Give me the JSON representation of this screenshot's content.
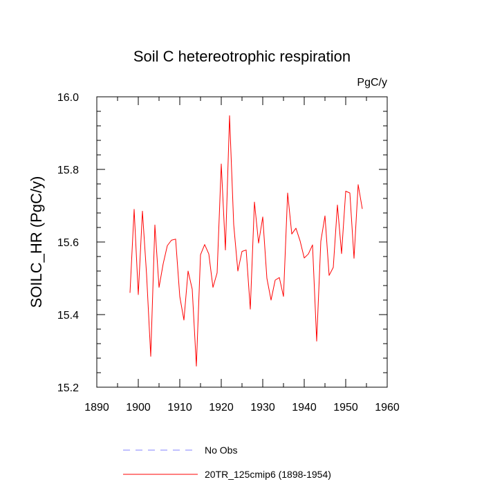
{
  "chart_data": {
    "type": "line",
    "title": "Soil C hetereotrophic respiration",
    "units": "PgC/y",
    "xlabel": "",
    "ylabel": "SOILC_HR  (PgC/y)",
    "xlim": [
      1890,
      1960
    ],
    "ylim": [
      15.2,
      16.0
    ],
    "x_major_ticks": [
      1890,
      1900,
      1910,
      1920,
      1930,
      1940,
      1950,
      1960
    ],
    "x_tick_labels": [
      "1890",
      "1900",
      "1910",
      "1920",
      "1930",
      "1940",
      "1950",
      "1960"
    ],
    "x_minor_step": 5,
    "y_major_ticks": [
      15.2,
      15.4,
      15.6,
      15.8,
      16.0
    ],
    "y_tick_labels": [
      "15.2",
      "15.4",
      "15.6",
      "15.8",
      "16.0"
    ],
    "y_minor_step": 0.04,
    "grid": false,
    "series": [
      {
        "name": "No Obs",
        "color": "#8080ff",
        "style": "dashed",
        "x": [],
        "values": []
      },
      {
        "name": "20TR_125cmip6 (1898-1954)",
        "color": "#ff0000",
        "style": "solid",
        "x": [
          1898,
          1899,
          1900,
          1901,
          1902,
          1903,
          1904,
          1905,
          1906,
          1907,
          1908,
          1909,
          1910,
          1911,
          1912,
          1913,
          1914,
          1915,
          1916,
          1917,
          1918,
          1919,
          1920,
          1921,
          1922,
          1923,
          1924,
          1925,
          1926,
          1927,
          1928,
          1929,
          1930,
          1931,
          1932,
          1933,
          1934,
          1935,
          1936,
          1937,
          1938,
          1939,
          1940,
          1941,
          1942,
          1943,
          1944,
          1945,
          1946,
          1947,
          1948,
          1949,
          1950,
          1951,
          1952,
          1953,
          1954
        ],
        "values": [
          15.46,
          15.69,
          15.455,
          15.685,
          15.51,
          15.285,
          15.647,
          15.475,
          15.54,
          15.59,
          15.605,
          15.608,
          15.45,
          15.385,
          15.52,
          15.47,
          15.258,
          15.565,
          15.593,
          15.567,
          15.475,
          15.515,
          15.815,
          15.578,
          15.948,
          15.648,
          15.52,
          15.574,
          15.578,
          15.415,
          15.71,
          15.597,
          15.669,
          15.5,
          15.44,
          15.495,
          15.502,
          15.45,
          15.735,
          15.622,
          15.638,
          15.603,
          15.556,
          15.567,
          15.592,
          15.327,
          15.602,
          15.672,
          15.508,
          15.53,
          15.702,
          15.568,
          15.74,
          15.735,
          15.555,
          15.758,
          15.691
        ]
      }
    ],
    "legend_position": "bottom-left"
  }
}
